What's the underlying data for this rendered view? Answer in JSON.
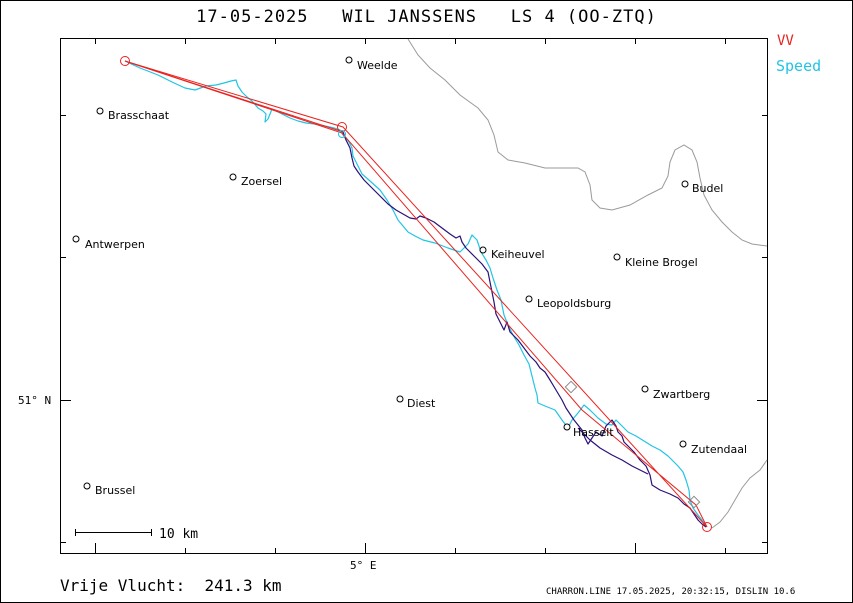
{
  "header": {
    "title": "17-05-2025   WIL JANSSENS   LS 4 (OO-ZTQ)"
  },
  "legend": {
    "vv_label": "VV",
    "speed_label": "Speed",
    "vv_color": "#e8231f",
    "speed_color": "#22c4e4",
    "vario_color": "#2a117a"
  },
  "axes": {
    "lat_label": "51° N",
    "lon_label": "5° E"
  },
  "scale": {
    "label": "10 km"
  },
  "places": [
    {
      "name": "Weelde"
    },
    {
      "name": "Brasschaat"
    },
    {
      "name": "Zoersel"
    },
    {
      "name": "Budel"
    },
    {
      "name": "Antwerpen"
    },
    {
      "name": "Keiheuvel"
    },
    {
      "name": "Kleine Brogel"
    },
    {
      "name": "Leopoldsburg"
    },
    {
      "name": "Zwartberg"
    },
    {
      "name": "Diest"
    },
    {
      "name": "Hasselt"
    },
    {
      "name": "Zutendaal"
    },
    {
      "name": "Brussel"
    }
  ],
  "footer": {
    "distance": "Vrije Vlucht:  241.3 km",
    "credit": "CHARRON.LINE 17.05.2025, 20:32:15, DISLIN 10.6"
  }
}
